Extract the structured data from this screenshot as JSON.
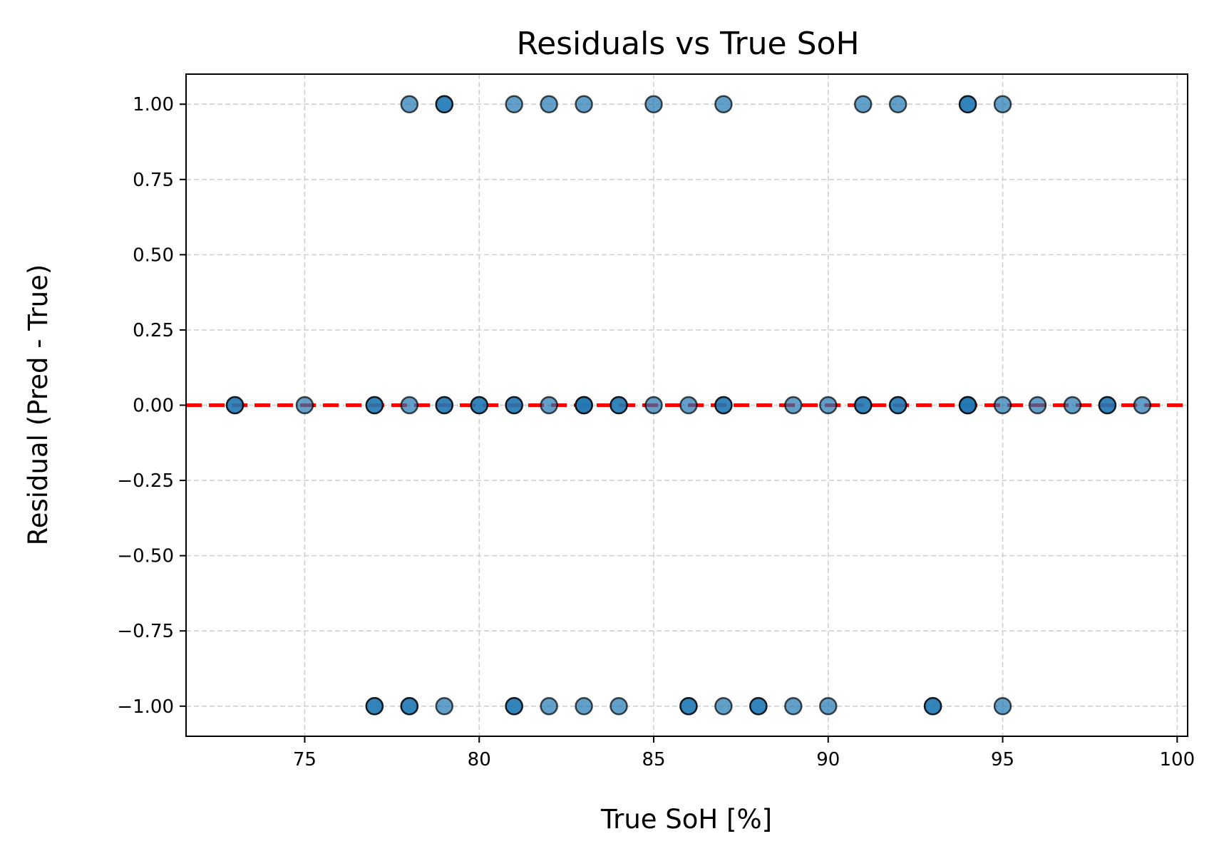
{
  "chart_data": {
    "type": "scatter",
    "title": "Residuals vs True SoH",
    "xlabel": "True SoH [%]",
    "ylabel": "Residual (Pred - True)",
    "xlim": [
      71.6,
      100.3
    ],
    "ylim": [
      -1.1,
      1.1
    ],
    "xticks": [
      75,
      80,
      85,
      90,
      95,
      100
    ],
    "xtick_labels": [
      "75",
      "80",
      "85",
      "90",
      "95",
      "100"
    ],
    "yticks": [
      1,
      0.75,
      0.5,
      0.25,
      0,
      -0.25,
      -0.5,
      -0.75,
      -1
    ],
    "ytick_labels": [
      "1.00",
      "0.75",
      "0.50",
      "0.25",
      "0.00",
      "−0.25",
      "−0.50",
      "−0.75",
      "−1.00"
    ],
    "grid": true,
    "reference_line": {
      "y": 0,
      "style": "dashed",
      "color": "#ff0000"
    },
    "colors": {
      "point": "#1f77b4",
      "point_edge": "#000000",
      "grid": "#d0d0d0"
    },
    "points": [
      {
        "x": 78,
        "y": 1
      },
      {
        "x": 79,
        "y": 1
      },
      {
        "x": 79,
        "y": 1
      },
      {
        "x": 81,
        "y": 1
      },
      {
        "x": 82,
        "y": 1
      },
      {
        "x": 83,
        "y": 1
      },
      {
        "x": 85,
        "y": 1
      },
      {
        "x": 87,
        "y": 1
      },
      {
        "x": 91,
        "y": 1
      },
      {
        "x": 92,
        "y": 1
      },
      {
        "x": 94,
        "y": 1
      },
      {
        "x": 94,
        "y": 1
      },
      {
        "x": 95,
        "y": 1
      },
      {
        "x": 73,
        "y": 0
      },
      {
        "x": 73,
        "y": 0
      },
      {
        "x": 75,
        "y": 0
      },
      {
        "x": 77,
        "y": 0
      },
      {
        "x": 77,
        "y": 0
      },
      {
        "x": 78,
        "y": 0
      },
      {
        "x": 79,
        "y": 0
      },
      {
        "x": 79,
        "y": 0
      },
      {
        "x": 80,
        "y": 0
      },
      {
        "x": 80,
        "y": 0
      },
      {
        "x": 81,
        "y": 0
      },
      {
        "x": 81,
        "y": 0
      },
      {
        "x": 82,
        "y": 0
      },
      {
        "x": 83,
        "y": 0
      },
      {
        "x": 83,
        "y": 0
      },
      {
        "x": 83,
        "y": 0
      },
      {
        "x": 84,
        "y": 0
      },
      {
        "x": 84,
        "y": 0
      },
      {
        "x": 85,
        "y": 0
      },
      {
        "x": 86,
        "y": 0
      },
      {
        "x": 87,
        "y": 0
      },
      {
        "x": 87,
        "y": 0
      },
      {
        "x": 89,
        "y": 0
      },
      {
        "x": 90,
        "y": 0
      },
      {
        "x": 91,
        "y": 0
      },
      {
        "x": 91,
        "y": 0
      },
      {
        "x": 92,
        "y": 0
      },
      {
        "x": 92,
        "y": 0
      },
      {
        "x": 94,
        "y": 0
      },
      {
        "x": 94,
        "y": 0
      },
      {
        "x": 94,
        "y": 0
      },
      {
        "x": 95,
        "y": 0
      },
      {
        "x": 96,
        "y": 0
      },
      {
        "x": 97,
        "y": 0
      },
      {
        "x": 98,
        "y": 0
      },
      {
        "x": 98,
        "y": 0
      },
      {
        "x": 99,
        "y": 0
      },
      {
        "x": 77,
        "y": -1
      },
      {
        "x": 77,
        "y": -1
      },
      {
        "x": 78,
        "y": -1
      },
      {
        "x": 78,
        "y": -1
      },
      {
        "x": 79,
        "y": -1
      },
      {
        "x": 81,
        "y": -1
      },
      {
        "x": 81,
        "y": -1
      },
      {
        "x": 82,
        "y": -1
      },
      {
        "x": 83,
        "y": -1
      },
      {
        "x": 84,
        "y": -1
      },
      {
        "x": 86,
        "y": -1
      },
      {
        "x": 86,
        "y": -1
      },
      {
        "x": 87,
        "y": -1
      },
      {
        "x": 88,
        "y": -1
      },
      {
        "x": 88,
        "y": -1
      },
      {
        "x": 89,
        "y": -1
      },
      {
        "x": 90,
        "y": -1
      },
      {
        "x": 93,
        "y": -1
      },
      {
        "x": 93,
        "y": -1
      },
      {
        "x": 95,
        "y": -1
      }
    ]
  }
}
